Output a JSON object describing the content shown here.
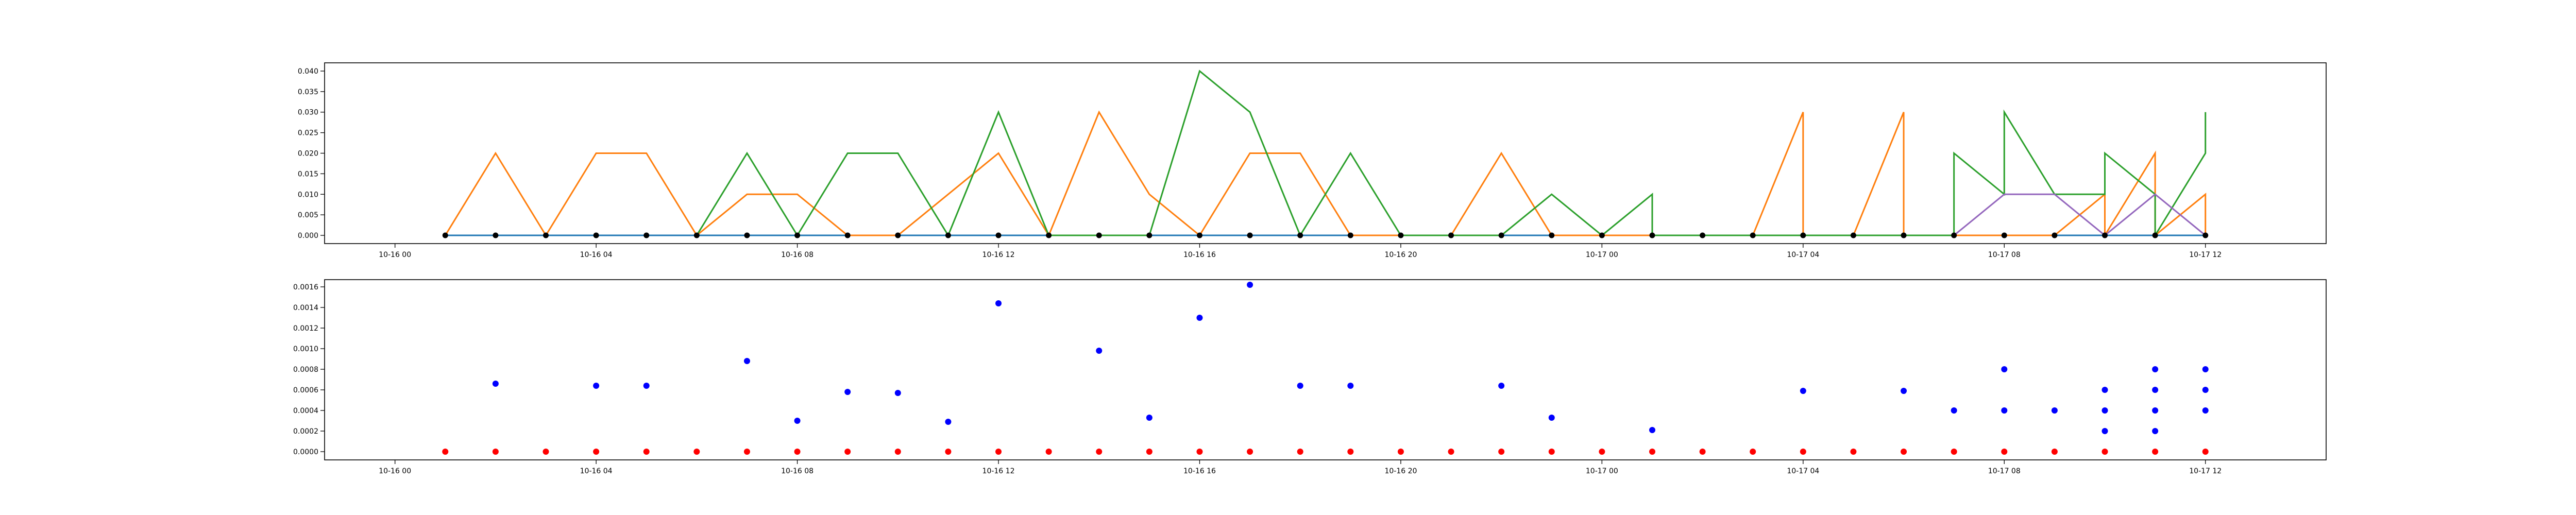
{
  "chart_data": [
    {
      "type": "line",
      "title": "",
      "xlabel": "",
      "ylabel": "",
      "xlim": [
        "2024-10-15 22:36",
        "2024-10-17 14:24"
      ],
      "ylim": [
        -0.002,
        0.042
      ],
      "x_tick_labels": [
        "10-16 00",
        "10-16 04",
        "10-16 08",
        "10-16 12",
        "10-16 16",
        "10-16 20",
        "10-17 00",
        "10-17 04",
        "10-17 08",
        "10-17 12"
      ],
      "y_tick_labels": [
        "0.000",
        "0.005",
        "0.010",
        "0.015",
        "0.020",
        "0.025",
        "0.030",
        "0.035",
        "0.040"
      ],
      "grid": false,
      "series": [
        {
          "color": "#1f77b4",
          "points": [
            [
              "10-16 01:00",
              0
            ],
            [
              "10-17 12:00",
              0
            ]
          ]
        },
        {
          "color": "#ff7f0e",
          "points": [
            [
              "10-16 01:00",
              0
            ],
            [
              "10-16 02:00",
              0.02
            ],
            [
              "10-16 03:00",
              0
            ],
            [
              "10-16 04:00",
              0.02
            ],
            [
              "10-16 05:00",
              0.02
            ],
            [
              "10-16 06:00",
              0
            ],
            [
              "10-16 07:00",
              0.01
            ],
            [
              "10-16 08:00",
              0.01
            ],
            [
              "10-16 09:00",
              0
            ],
            [
              "10-16 10:00",
              0
            ],
            [
              "10-16 12:00",
              0.02
            ],
            [
              "10-16 13:00",
              0
            ],
            [
              "10-16 14:00",
              0.03
            ],
            [
              "10-16 15:00",
              0.01
            ],
            [
              "10-16 16:00",
              0
            ],
            [
              "10-16 17:00",
              0.02
            ],
            [
              "10-16 18:00",
              0.02
            ],
            [
              "10-16 19:00",
              0
            ],
            [
              "10-16 21:00",
              0
            ],
            [
              "10-16 22:00",
              0.02
            ],
            [
              "10-16 23:00",
              0
            ],
            [
              "10-17 03:00",
              0
            ],
            [
              "10-17 04:00",
              0.03
            ],
            [
              "10-17 04:00",
              0
            ],
            [
              "10-17 05:00",
              0
            ],
            [
              "10-17 06:00",
              0.03
            ],
            [
              "10-17 06:00",
              0
            ],
            [
              "10-17 09:00",
              0
            ],
            [
              "10-17 10:00",
              0.01
            ],
            [
              "10-17 10:00",
              0
            ],
            [
              "10-17 11:00",
              0.02
            ],
            [
              "10-17 11:00",
              0
            ],
            [
              "10-17 12:00",
              0.01
            ],
            [
              "10-17 12:00",
              0
            ]
          ]
        },
        {
          "color": "#2ca02c",
          "points": [
            [
              "10-16 06:00",
              0
            ],
            [
              "10-16 07:00",
              0.02
            ],
            [
              "10-16 08:00",
              0
            ],
            [
              "10-16 09:00",
              0.02
            ],
            [
              "10-16 10:00",
              0.02
            ],
            [
              "10-16 11:00",
              0
            ],
            [
              "10-16 12:00",
              0.03
            ],
            [
              "10-16 13:00",
              0
            ],
            [
              "10-16 15:00",
              0
            ],
            [
              "10-16 16:00",
              0.04
            ],
            [
              "10-16 17:00",
              0.03
            ],
            [
              "10-16 18:00",
              0
            ],
            [
              "10-16 19:00",
              0.02
            ],
            [
              "10-16 20:00",
              0
            ],
            [
              "10-16 22:00",
              0
            ],
            [
              "10-16 23:00",
              0.01
            ],
            [
              "10-17 00:00",
              0
            ],
            [
              "10-17 01:00",
              0.01
            ],
            [
              "10-17 01:00",
              0
            ],
            [
              "10-17 07:00",
              0
            ],
            [
              "10-17 07:00",
              0.02
            ],
            [
              "10-17 08:00",
              0.01
            ],
            [
              "10-17 08:00",
              0.03
            ],
            [
              "10-17 09:00",
              0.01
            ],
            [
              "10-17 10:00",
              0.01
            ],
            [
              "10-17 10:00",
              0.02
            ],
            [
              "10-17 11:00",
              0.01
            ],
            [
              "10-17 11:00",
              0
            ],
            [
              "10-17 12:00",
              0.02
            ],
            [
              "10-17 12:00",
              0.03
            ]
          ]
        },
        {
          "color": "#9467bd",
          "points": [
            [
              "10-17 07:00",
              0
            ],
            [
              "10-17 08:00",
              0.01
            ],
            [
              "10-17 09:00",
              0.01
            ],
            [
              "10-17 10:00",
              0
            ],
            [
              "10-17 11:00",
              0.01
            ],
            [
              "10-17 12:00",
              0
            ]
          ]
        }
      ],
      "markers": {
        "color": "#000000",
        "points": [
          [
            "10-16 01:00",
            0
          ],
          [
            "10-16 02:00",
            0
          ],
          [
            "10-16 03:00",
            0
          ],
          [
            "10-16 04:00",
            0
          ],
          [
            "10-16 05:00",
            0
          ],
          [
            "10-16 06:00",
            0
          ],
          [
            "10-16 07:00",
            0
          ],
          [
            "10-16 08:00",
            0
          ],
          [
            "10-16 09:00",
            0
          ],
          [
            "10-16 10:00",
            0
          ],
          [
            "10-16 11:00",
            0
          ],
          [
            "10-16 12:00",
            0
          ],
          [
            "10-16 13:00",
            0
          ],
          [
            "10-16 14:00",
            0
          ],
          [
            "10-16 15:00",
            0
          ],
          [
            "10-16 16:00",
            0
          ],
          [
            "10-16 17:00",
            0
          ],
          [
            "10-16 18:00",
            0
          ],
          [
            "10-16 19:00",
            0
          ],
          [
            "10-16 20:00",
            0
          ],
          [
            "10-16 21:00",
            0
          ],
          [
            "10-16 22:00",
            0
          ],
          [
            "10-16 23:00",
            0
          ],
          [
            "10-17 00:00",
            0
          ],
          [
            "10-17 01:00",
            0
          ],
          [
            "10-17 02:00",
            0
          ],
          [
            "10-17 03:00",
            0
          ],
          [
            "10-17 04:00",
            0
          ],
          [
            "10-17 05:00",
            0
          ],
          [
            "10-17 06:00",
            0
          ],
          [
            "10-17 07:00",
            0
          ],
          [
            "10-17 08:00",
            0
          ],
          [
            "10-17 09:00",
            0
          ],
          [
            "10-17 10:00",
            0
          ],
          [
            "10-17 11:00",
            0
          ],
          [
            "10-17 12:00",
            0
          ]
        ]
      }
    },
    {
      "type": "scatter",
      "title": "",
      "xlabel": "",
      "ylabel": "",
      "xlim": [
        "2024-10-15 22:36",
        "2024-10-17 14:24"
      ],
      "ylim": [
        -8e-05,
        0.00167
      ],
      "x_tick_labels": [
        "10-16 00",
        "10-16 04",
        "10-16 08",
        "10-16 12",
        "10-16 16",
        "10-16 20",
        "10-17 00",
        "10-17 04",
        "10-17 08",
        "10-17 12"
      ],
      "y_tick_labels": [
        "0.0000",
        "0.0002",
        "0.0004",
        "0.0006",
        "0.0008",
        "0.0010",
        "0.0012",
        "0.0014",
        "0.0016"
      ],
      "grid": false,
      "series": [
        {
          "color": "#ff0000",
          "points": [
            [
              "10-16 01:00",
              0
            ],
            [
              "10-16 02:00",
              0
            ],
            [
              "10-16 03:00",
              0
            ],
            [
              "10-16 04:00",
              0
            ],
            [
              "10-16 05:00",
              0
            ],
            [
              "10-16 06:00",
              0
            ],
            [
              "10-16 07:00",
              0
            ],
            [
              "10-16 08:00",
              0
            ],
            [
              "10-16 09:00",
              0
            ],
            [
              "10-16 10:00",
              0
            ],
            [
              "10-16 11:00",
              0
            ],
            [
              "10-16 12:00",
              0
            ],
            [
              "10-16 13:00",
              0
            ],
            [
              "10-16 14:00",
              0
            ],
            [
              "10-16 15:00",
              0
            ],
            [
              "10-16 16:00",
              0
            ],
            [
              "10-16 17:00",
              0
            ],
            [
              "10-16 18:00",
              0
            ],
            [
              "10-16 19:00",
              0
            ],
            [
              "10-16 20:00",
              0
            ],
            [
              "10-16 21:00",
              0
            ],
            [
              "10-16 22:00",
              0
            ],
            [
              "10-16 23:00",
              0
            ],
            [
              "10-17 00:00",
              0
            ],
            [
              "10-17 01:00",
              0
            ],
            [
              "10-17 02:00",
              0
            ],
            [
              "10-17 03:00",
              0
            ],
            [
              "10-17 04:00",
              0
            ],
            [
              "10-17 05:00",
              0
            ],
            [
              "10-17 06:00",
              0
            ],
            [
              "10-17 07:00",
              0
            ],
            [
              "10-17 08:00",
              0
            ],
            [
              "10-17 09:00",
              0
            ],
            [
              "10-17 10:00",
              0
            ],
            [
              "10-17 11:00",
              0
            ],
            [
              "10-17 12:00",
              0
            ]
          ]
        },
        {
          "color": "#0000ff",
          "points": [
            [
              "10-16 02:00",
              0.00066
            ],
            [
              "10-16 04:00",
              0.00064
            ],
            [
              "10-16 05:00",
              0.00064
            ],
            [
              "10-16 07:00",
              0.00088
            ],
            [
              "10-16 08:00",
              0.0003
            ],
            [
              "10-16 09:00",
              0.00058
            ],
            [
              "10-16 10:00",
              0.00057
            ],
            [
              "10-16 11:00",
              0.00029
            ],
            [
              "10-16 12:00",
              0.00144
            ],
            [
              "10-16 14:00",
              0.00098
            ],
            [
              "10-16 15:00",
              0.00033
            ],
            [
              "10-16 16:00",
              0.0013
            ],
            [
              "10-16 17:00",
              0.00162
            ],
            [
              "10-16 18:00",
              0.00064
            ],
            [
              "10-16 19:00",
              0.00064
            ],
            [
              "10-16 22:00",
              0.00064
            ],
            [
              "10-16 23:00",
              0.00033
            ],
            [
              "10-17 01:00",
              0.00021
            ],
            [
              "10-17 04:00",
              0.00059
            ],
            [
              "10-17 06:00",
              0.00059
            ],
            [
              "10-17 07:00",
              0.0004
            ],
            [
              "10-17 08:00",
              0.0004
            ],
            [
              "10-17 08:00",
              0.0008
            ],
            [
              "10-17 09:00",
              0.0004
            ],
            [
              "10-17 10:00",
              0.0006
            ],
            [
              "10-17 10:00",
              0.0004
            ],
            [
              "10-17 10:00",
              0.0002
            ],
            [
              "10-17 11:00",
              0.0008
            ],
            [
              "10-17 11:00",
              0.0006
            ],
            [
              "10-17 11:00",
              0.0004
            ],
            [
              "10-17 11:00",
              0.0002
            ],
            [
              "10-17 12:00",
              0.0008
            ],
            [
              "10-17 12:00",
              0.0006
            ],
            [
              "10-17 12:00",
              0.0004
            ]
          ]
        }
      ]
    }
  ]
}
